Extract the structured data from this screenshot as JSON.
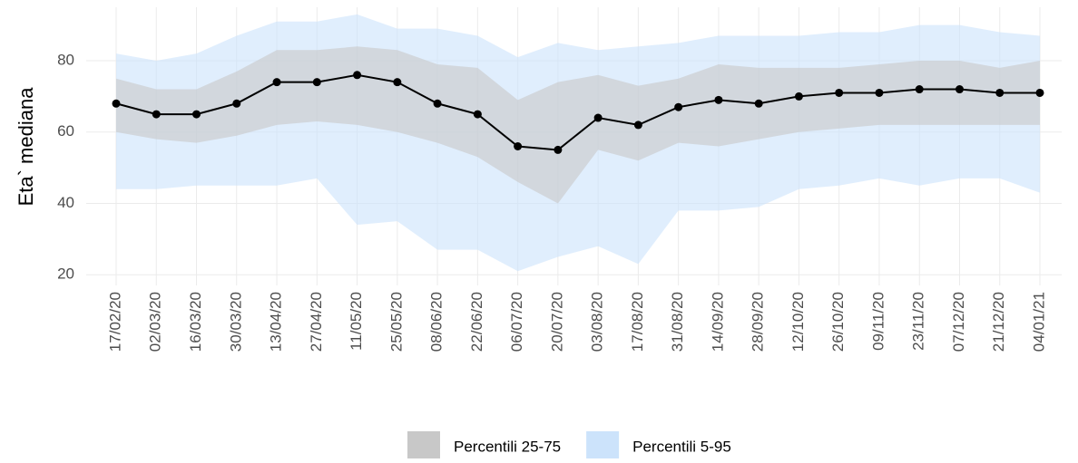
{
  "chart_data": {
    "type": "line",
    "y_label": "Eta` mediana",
    "categories": [
      "17/02/20",
      "02/03/20",
      "16/03/20",
      "30/03/20",
      "13/04/20",
      "27/04/20",
      "11/05/20",
      "25/05/20",
      "08/06/20",
      "22/06/20",
      "06/07/20",
      "20/07/20",
      "03/08/20",
      "17/08/20",
      "31/08/20",
      "14/09/20",
      "28/09/20",
      "12/10/20",
      "26/10/20",
      "09/11/20",
      "23/11/20",
      "07/12/20",
      "21/12/20",
      "04/01/21"
    ],
    "series": [
      {
        "name": "Eta` mediana",
        "color": "#000000",
        "values": [
          68,
          65,
          65,
          68,
          74,
          74,
          76,
          74,
          68,
          65,
          56,
          55,
          64,
          62,
          67,
          69,
          68,
          70,
          71,
          71,
          72,
          72,
          71,
          71
        ]
      }
    ],
    "bands": [
      {
        "name": "Percentili 5-95",
        "color": "#cce3fb",
        "lower": [
          44,
          44,
          45,
          45,
          45,
          47,
          34,
          35,
          27,
          27,
          21,
          25,
          28,
          23,
          38,
          38,
          39,
          44,
          45,
          47,
          45,
          47,
          47,
          43
        ],
        "upper": [
          82,
          80,
          82,
          87,
          91,
          91,
          93,
          89,
          89,
          87,
          81,
          85,
          83,
          84,
          85,
          87,
          87,
          87,
          88,
          88,
          90,
          90,
          88,
          87
        ]
      },
      {
        "name": "Percentili 25-75",
        "color": "#c8c8c8",
        "lower": [
          60,
          58,
          57,
          59,
          62,
          63,
          62,
          60,
          57,
          53,
          46,
          40,
          55,
          52,
          57,
          56,
          58,
          60,
          61,
          62,
          62,
          62,
          62,
          62
        ],
        "upper": [
          75,
          72,
          72,
          77,
          83,
          83,
          84,
          83,
          79,
          78,
          69,
          74,
          76,
          73,
          75,
          79,
          78,
          78,
          78,
          79,
          80,
          80,
          78,
          80
        ]
      }
    ],
    "ylim": [
      17,
      95
    ],
    "yticks": [
      20,
      40,
      60,
      80
    ],
    "grid": true
  }
}
